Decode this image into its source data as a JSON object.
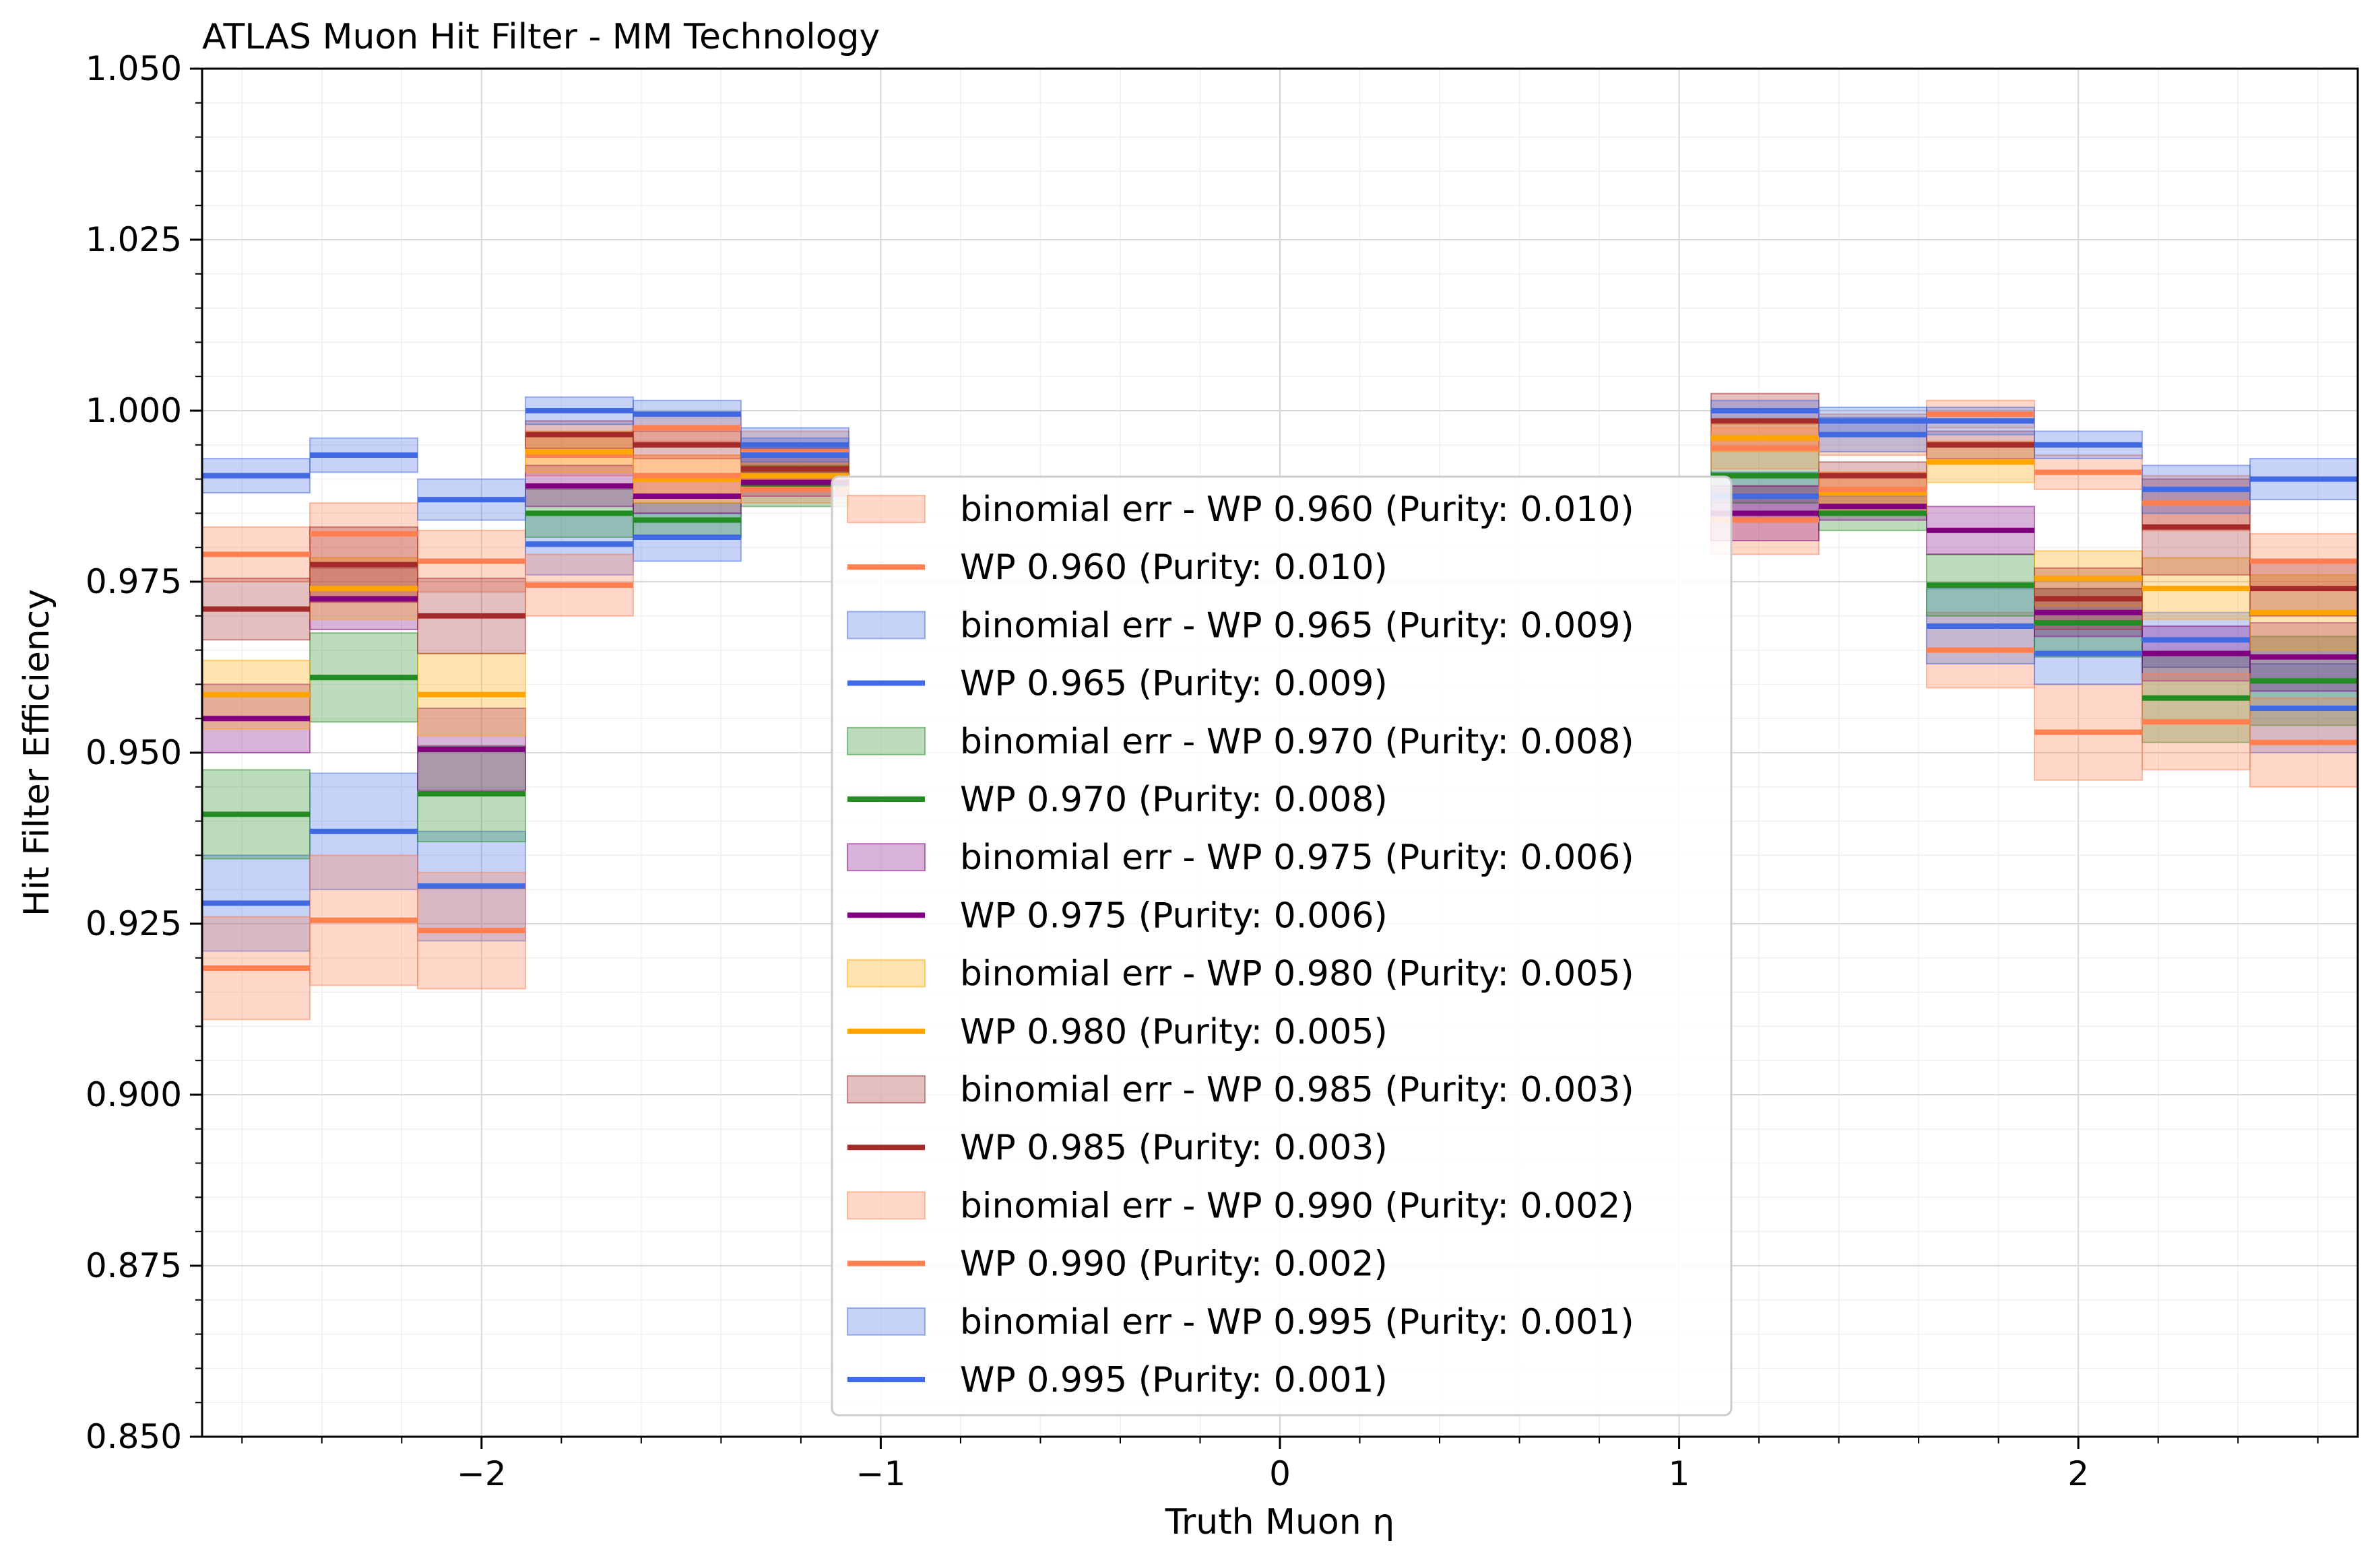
{
  "chart_data": {
    "type": "step",
    "title": "ATLAS Muon Hit Filter - MM Technology",
    "xlabel": "Truth Muon η",
    "ylabel": "Hit Filter Efficiency",
    "xlim": [
      -2.7,
      2.7
    ],
    "ylim": [
      0.85,
      1.05
    ],
    "x_ticks": [
      -2,
      -1,
      0,
      1,
      2
    ],
    "x_tick_labels": [
      "−2",
      "−1",
      "0",
      "1",
      "2"
    ],
    "y_ticks": [
      0.85,
      0.875,
      0.9,
      0.925,
      0.95,
      0.975,
      1.0,
      1.025,
      1.05
    ],
    "y_tick_labels": [
      "0.850",
      "0.875",
      "0.900",
      "0.925",
      "0.950",
      "0.975",
      "1.000",
      "1.025",
      "1.050"
    ],
    "grid": true,
    "legend_placement": "center",
    "bins": [
      [
        -2.7,
        -2.43
      ],
      [
        -2.43,
        -2.16
      ],
      [
        -2.16,
        -1.89
      ],
      [
        -1.89,
        -1.62
      ],
      [
        -1.62,
        -1.35
      ],
      [
        -1.35,
        -1.08
      ],
      [
        1.08,
        1.35
      ],
      [
        1.35,
        1.62
      ],
      [
        1.62,
        1.89
      ],
      [
        1.89,
        2.16
      ],
      [
        2.16,
        2.43
      ],
      [
        2.43,
        2.7
      ]
    ],
    "series": [
      {
        "name": "WP 0.960 (Purity: 0.010)",
        "band_name": "binomial err - WP 0.960 (Purity: 0.010)",
        "color": "#ff7f50",
        "values": [
          0.979,
          0.982,
          0.978,
          0.9935,
          0.9975,
          0.994,
          0.984,
          0.9965,
          0.965,
          0.953,
          0.9865,
          0.978
        ],
        "errors": [
          0.004,
          0.0045,
          0.0045,
          0.003,
          0.002,
          0.003,
          0.005,
          0.003,
          0.0055,
          0.007,
          0.004,
          0.004
        ]
      },
      {
        "name": "WP 0.965 (Purity: 0.009)",
        "band_name": "binomial err - WP 0.965 (Purity: 0.009)",
        "color": "#4169e1",
        "values": [
          0.928,
          0.9385,
          0.9305,
          0.9805,
          0.9815,
          0.9935,
          0.9875,
          0.9965,
          0.9685,
          0.9645,
          0.9665,
          0.9565
        ],
        "errors": [
          0.007,
          0.0085,
          0.008,
          0.0045,
          0.0035,
          0.0025,
          0.0035,
          0.0025,
          0.0055,
          0.0045,
          0.004,
          0.0065
        ]
      },
      {
        "name": "WP 0.970 (Purity: 0.008)",
        "band_name": "binomial err - WP 0.970 (Purity: 0.008)",
        "color": "#228b22",
        "values": [
          0.941,
          0.961,
          0.944,
          0.985,
          0.984,
          0.989,
          0.9905,
          0.985,
          0.9745,
          0.969,
          0.958,
          0.9605
        ],
        "errors": [
          0.0065,
          0.0065,
          0.007,
          0.0035,
          0.0025,
          0.003,
          0.004,
          0.0025,
          0.0045,
          0.005,
          0.0065,
          0.0065
        ]
      },
      {
        "name": "WP 0.975 (Purity: 0.006)",
        "band_name": "binomial err - WP 0.975 (Purity: 0.006)",
        "color": "#800080",
        "values": [
          0.955,
          0.9725,
          0.9505,
          0.989,
          0.9875,
          0.9895,
          0.985,
          0.986,
          0.9825,
          0.9705,
          0.9645,
          0.964
        ],
        "errors": [
          0.005,
          0.0045,
          0.006,
          0.003,
          0.0025,
          0.002,
          0.004,
          0.002,
          0.0035,
          0.0035,
          0.004,
          0.005
        ]
      },
      {
        "name": "WP 0.980 (Purity: 0.005)",
        "band_name": "binomial err - WP 0.980 (Purity: 0.005)",
        "color": "#ffa500",
        "values": [
          0.9585,
          0.974,
          0.9585,
          0.994,
          0.99,
          0.9905,
          0.996,
          0.988,
          0.9925,
          0.9755,
          0.974,
          0.9705
        ],
        "errors": [
          0.005,
          0.0045,
          0.006,
          0.003,
          0.0035,
          0.002,
          0.002,
          0.003,
          0.003,
          0.004,
          0.0045,
          0.0055
        ]
      },
      {
        "name": "WP 0.985 (Purity: 0.003)",
        "band_name": "binomial err - WP 0.985 (Purity: 0.003)",
        "color": "#a52a2a",
        "values": [
          0.971,
          0.9775,
          0.97,
          0.9965,
          0.995,
          0.9915,
          0.9985,
          0.9905,
          0.995,
          0.9725,
          0.983,
          0.974
        ],
        "errors": [
          0.0045,
          0.0055,
          0.0055,
          0.002,
          0.002,
          0.003,
          0.004,
          0.002,
          0.002,
          0.0045,
          0.007,
          0.004
        ]
      },
      {
        "name": "WP 0.990 (Purity: 0.002)",
        "band_name": "binomial err - WP 0.990 (Purity: 0.002)",
        "color": "#ff7f50",
        "values": [
          0.9185,
          0.9255,
          0.924,
          0.9745,
          0.9905,
          0.9885,
          0.9945,
          0.9885,
          0.9995,
          0.991,
          0.9545,
          0.9515
        ],
        "errors": [
          0.0075,
          0.0095,
          0.0085,
          0.0045,
          0.003,
          0.002,
          0.003,
          0.0025,
          0.002,
          0.0025,
          0.007,
          0.0065
        ]
      },
      {
        "name": "WP 0.995 (Purity: 0.001)",
        "band_name": "binomial err - WP 0.995 (Purity: 0.001)",
        "color": "#4169e1",
        "values": [
          0.9905,
          0.9935,
          0.987,
          1.0,
          0.9995,
          0.995,
          1.0,
          0.9985,
          0.9985,
          0.995,
          0.9885,
          0.99
        ],
        "errors": [
          0.0025,
          0.0025,
          0.003,
          0.002,
          0.002,
          0.0025,
          0.0015,
          0.002,
          0.002,
          0.002,
          0.0035,
          0.003
        ]
      }
    ]
  }
}
